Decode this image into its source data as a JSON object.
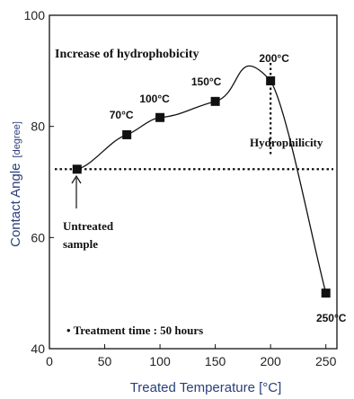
{
  "chart_data": {
    "type": "line",
    "xlabel": "Treated Temperature   [°C]",
    "ylabel_main": "Contact Angle",
    "ylabel_unit": "[degree]",
    "xlim": [
      0,
      260
    ],
    "ylim": [
      40,
      100
    ],
    "x_ticks": [
      0,
      50,
      100,
      150,
      200,
      250
    ],
    "y_ticks": [
      40,
      60,
      80,
      100
    ],
    "grid": false,
    "series": [
      {
        "x": [
          25,
          70,
          100,
          150,
          200,
          250
        ],
        "y": [
          72.3,
          78.5,
          81.6,
          84.5,
          88.2,
          50.0
        ],
        "point_labels": [
          "",
          "70°C",
          "100°C",
          "150°C",
          "200°C",
          "250°C"
        ]
      }
    ],
    "reference_line_y": 72.3,
    "reference_line_x": 200,
    "annotations": {
      "increase": "Increase of hydrophobicity",
      "hydrophilicity": "Hydrophilicity",
      "untreated_line1": "Untreated",
      "untreated_line2": "sample",
      "treatment_time": "• Treatment time : 50 hours"
    }
  }
}
